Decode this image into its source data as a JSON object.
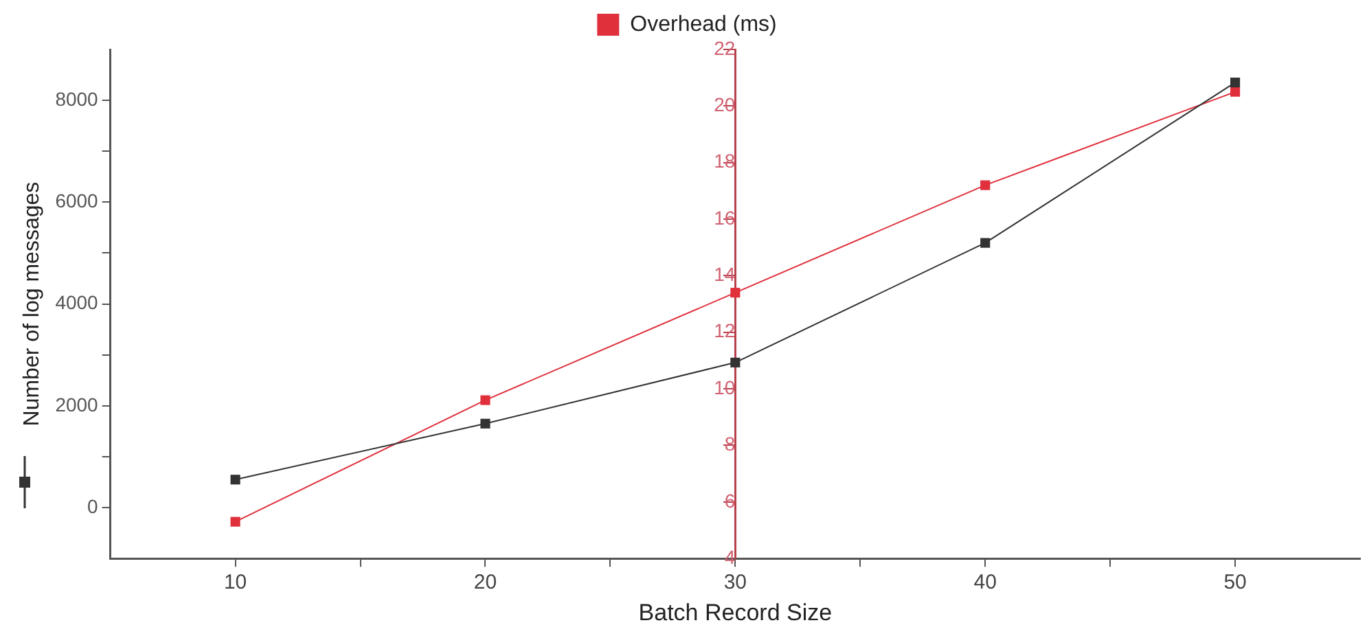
{
  "chart_data": {
    "type": "line",
    "xlabel": "Batch Record Size",
    "ylabel": "Number of log messages",
    "x": [
      10,
      20,
      30,
      40,
      50
    ],
    "xlim": [
      5,
      55
    ],
    "xticks": [
      10,
      {
        "value": 15,
        "label": null
      },
      20,
      {
        "value": 25,
        "label": null
      },
      30,
      {
        "value": 35,
        "label": null
      },
      40,
      {
        "value": 45,
        "label": null
      },
      50
    ],
    "ylim": [
      -1000,
      9000
    ],
    "yticks": [
      0,
      {
        "value": 1000,
        "label": null
      },
      2000,
      {
        "value": 3000,
        "label": null
      },
      4000,
      {
        "value": 5000,
        "label": null
      },
      6000,
      {
        "value": 7000,
        "label": null
      },
      8000
    ],
    "y2lim": [
      4,
      22
    ],
    "y2ticks": [
      4,
      6,
      8,
      10,
      12,
      14,
      16,
      18,
      20,
      22
    ],
    "series": [
      {
        "color": "#333333",
        "values": [
          550,
          1650,
          2850,
          5200,
          8350
        ]
      },
      {
        "name": "Overhead (ms)",
        "color": "#e0303c",
        "axis": "y2",
        "values": [
          5.3,
          9.6,
          13.4,
          17.2,
          20.5
        ]
      }
    ],
    "marker": "square",
    "line_style": "solid",
    "grid": false,
    "legend": "top"
  }
}
